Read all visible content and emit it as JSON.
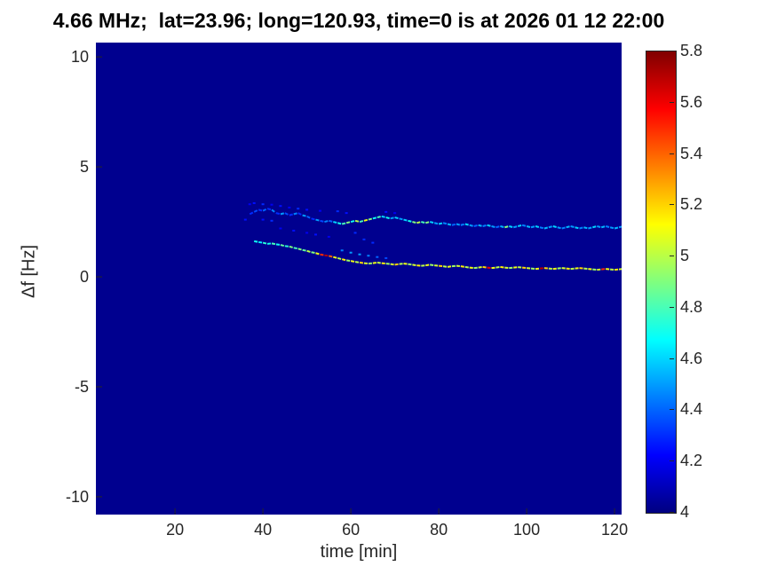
{
  "chart_data": {
    "type": "heatmap",
    "title": "4.66 MHz;  lat=23.96; long=120.93, time=0 is at 2026 01 12 22:00",
    "xlabel": "time [min]",
    "ylabel": "Δf [Hz]",
    "xlim": [
      2,
      121.6
    ],
    "ylim": [
      -10.81,
      10.65
    ],
    "x_ticks": {
      "values": [
        20,
        40,
        60,
        80,
        100,
        120
      ],
      "labels": [
        "20",
        "40",
        "60",
        "80",
        "100",
        "120"
      ]
    },
    "y_ticks": {
      "values": [
        10,
        5,
        0,
        -5,
        -10
      ],
      "labels": [
        "10",
        "5",
        "0",
        "-5",
        "-10"
      ]
    },
    "grid": false,
    "colormap": "jet",
    "background_value": 4,
    "background_color": "#00008f",
    "colorbar": {
      "position": "right",
      "min": 4,
      "max": 5.8,
      "tick_values": [
        4,
        4.2,
        4.4,
        4.6,
        4.8,
        5,
        5.2,
        5.4,
        5.6,
        5.8
      ],
      "tick_labels": [
        "4",
        "4.2",
        "4.4",
        "4.6",
        "4.8",
        "5",
        "5.2",
        "5.4",
        "5.6",
        "5.8"
      ]
    },
    "traces": [
      {
        "name": "upper-doppler-trace",
        "style": "segments",
        "description": "Upper Doppler shift trace, appears ~t=37 min near 3 Hz, settles to ~2.2-2.3 Hz",
        "points": [
          [
            37,
            2.85,
            4.25
          ],
          [
            38,
            2.95,
            4.3
          ],
          [
            39,
            3.05,
            4.35
          ],
          [
            40,
            3.0,
            4.3
          ],
          [
            41,
            3.1,
            4.4
          ],
          [
            42,
            3.05,
            4.3
          ],
          [
            43,
            2.9,
            4.45
          ],
          [
            44,
            2.85,
            4.3
          ],
          [
            45,
            2.9,
            4.5
          ],
          [
            46,
            2.8,
            4.35
          ],
          [
            47,
            2.85,
            4.3
          ],
          [
            48,
            2.9,
            4.45
          ],
          [
            49,
            2.8,
            4.3
          ],
          [
            50,
            2.75,
            4.5
          ],
          [
            51,
            2.65,
            4.4
          ],
          [
            52,
            2.6,
            4.3
          ],
          [
            53,
            2.55,
            4.5
          ],
          [
            54,
            2.5,
            4.35
          ],
          [
            55,
            2.55,
            4.45
          ],
          [
            56,
            2.5,
            4.4
          ],
          [
            57,
            2.45,
            4.6
          ],
          [
            58,
            2.4,
            4.7
          ],
          [
            59,
            2.45,
            4.8
          ],
          [
            60,
            2.5,
            4.9
          ],
          [
            61,
            2.55,
            4.7
          ],
          [
            62,
            2.5,
            5.0
          ],
          [
            63,
            2.55,
            4.8
          ],
          [
            64,
            2.6,
            5.1
          ],
          [
            65,
            2.65,
            4.9
          ],
          [
            66,
            2.7,
            4.7
          ],
          [
            67,
            2.75,
            4.8
          ],
          [
            68,
            2.7,
            4.6
          ],
          [
            69,
            2.65,
            4.7
          ],
          [
            70,
            2.7,
            4.5
          ],
          [
            71,
            2.65,
            4.6
          ],
          [
            72,
            2.6,
            4.5
          ],
          [
            73,
            2.55,
            4.6
          ],
          [
            74,
            2.5,
            4.7
          ],
          [
            75,
            2.45,
            4.9
          ],
          [
            76,
            2.5,
            5.0
          ],
          [
            77,
            2.45,
            4.8
          ],
          [
            78,
            2.5,
            4.9
          ],
          [
            79,
            2.45,
            4.6
          ],
          [
            80,
            2.4,
            4.5
          ],
          [
            81,
            2.45,
            4.6
          ],
          [
            82,
            2.4,
            4.45
          ],
          [
            83,
            2.35,
            4.55
          ],
          [
            84,
            2.4,
            4.4
          ],
          [
            85,
            2.35,
            4.5
          ],
          [
            86,
            2.4,
            4.45
          ],
          [
            87,
            2.35,
            4.6
          ],
          [
            88,
            2.3,
            4.5
          ],
          [
            89,
            2.35,
            4.4
          ],
          [
            90,
            2.3,
            4.55
          ],
          [
            91,
            2.35,
            4.45
          ],
          [
            92,
            2.3,
            4.6
          ],
          [
            93,
            2.25,
            4.5
          ],
          [
            94,
            2.3,
            4.4
          ],
          [
            95,
            2.25,
            4.55
          ],
          [
            96,
            2.3,
            4.9
          ],
          [
            97,
            2.25,
            4.6
          ],
          [
            98,
            2.3,
            4.5
          ],
          [
            99,
            2.35,
            4.6
          ],
          [
            100,
            2.3,
            4.45
          ],
          [
            101,
            2.25,
            4.55
          ],
          [
            102,
            2.3,
            4.5
          ],
          [
            103,
            2.25,
            4.6
          ],
          [
            104,
            2.2,
            4.45
          ],
          [
            105,
            2.25,
            4.55
          ],
          [
            106,
            2.3,
            4.5
          ],
          [
            107,
            2.25,
            4.6
          ],
          [
            108,
            2.2,
            4.5
          ],
          [
            109,
            2.25,
            4.45
          ],
          [
            110,
            2.3,
            4.55
          ],
          [
            111,
            2.25,
            4.5
          ],
          [
            112,
            2.2,
            4.6
          ],
          [
            113,
            2.25,
            4.45
          ],
          [
            114,
            2.2,
            4.55
          ],
          [
            115,
            2.25,
            4.5
          ],
          [
            116,
            2.3,
            4.6
          ],
          [
            117,
            2.25,
            4.5
          ],
          [
            118,
            2.3,
            4.55
          ],
          [
            119,
            2.25,
            4.45
          ],
          [
            120,
            2.2,
            4.5
          ],
          [
            121,
            2.25,
            4.55
          ],
          [
            122,
            2.3,
            4.5
          ]
        ]
      },
      {
        "name": "lower-doppler-trace",
        "style": "segments",
        "description": "Lower Doppler shift trace, appears ~t=38 min near 1.6 Hz, descends to ~0.3-0.4 Hz, with red/orange specks",
        "points": [
          [
            38,
            1.62,
            4.6
          ],
          [
            39,
            1.58,
            4.7
          ],
          [
            40,
            1.55,
            4.65
          ],
          [
            41,
            1.5,
            4.75
          ],
          [
            42,
            1.52,
            4.7
          ],
          [
            43,
            1.48,
            4.8
          ],
          [
            44,
            1.45,
            4.7
          ],
          [
            45,
            1.4,
            4.85
          ],
          [
            46,
            1.38,
            4.75
          ],
          [
            47,
            1.32,
            4.9
          ],
          [
            48,
            1.28,
            4.8
          ],
          [
            49,
            1.22,
            4.9
          ],
          [
            50,
            1.18,
            4.85
          ],
          [
            51,
            1.12,
            5.0
          ],
          [
            52,
            1.08,
            4.9
          ],
          [
            53,
            1.02,
            5.1
          ],
          [
            54,
            0.98,
            5.5
          ],
          [
            55,
            0.95,
            5.7
          ],
          [
            56,
            0.9,
            5.4
          ],
          [
            57,
            0.85,
            5.1
          ],
          [
            58,
            0.8,
            5.0
          ],
          [
            59,
            0.75,
            5.15
          ],
          [
            60,
            0.72,
            4.95
          ],
          [
            61,
            0.68,
            5.1
          ],
          [
            62,
            0.65,
            5.0
          ],
          [
            63,
            0.62,
            5.2
          ],
          [
            64,
            0.6,
            5.05
          ],
          [
            65,
            0.62,
            4.95
          ],
          [
            66,
            0.65,
            5.1
          ],
          [
            67,
            0.62,
            5.0
          ],
          [
            68,
            0.6,
            5.15
          ],
          [
            69,
            0.58,
            4.95
          ],
          [
            70,
            0.55,
            5.05
          ],
          [
            71,
            0.58,
            5.2
          ],
          [
            72,
            0.6,
            5.0
          ],
          [
            73,
            0.58,
            5.1
          ],
          [
            74,
            0.55,
            4.95
          ],
          [
            75,
            0.52,
            5.05
          ],
          [
            76,
            0.5,
            5.15
          ],
          [
            77,
            0.52,
            5.0
          ],
          [
            78,
            0.55,
            5.1
          ],
          [
            79,
            0.52,
            4.95
          ],
          [
            80,
            0.5,
            5.05
          ],
          [
            81,
            0.48,
            5.2
          ],
          [
            82,
            0.45,
            5.0
          ],
          [
            83,
            0.48,
            5.1
          ],
          [
            84,
            0.5,
            4.95
          ],
          [
            85,
            0.48,
            5.05
          ],
          [
            86,
            0.45,
            5.15
          ],
          [
            87,
            0.42,
            5.0
          ],
          [
            88,
            0.4,
            5.1
          ],
          [
            89,
            0.42,
            4.95
          ],
          [
            90,
            0.45,
            5.05
          ],
          [
            91,
            0.42,
            5.2
          ],
          [
            92,
            0.4,
            5.6
          ],
          [
            93,
            0.42,
            5.1
          ],
          [
            94,
            0.45,
            5.0
          ],
          [
            95,
            0.42,
            5.15
          ],
          [
            96,
            0.4,
            5.05
          ],
          [
            97,
            0.42,
            4.95
          ],
          [
            98,
            0.44,
            5.1
          ],
          [
            99,
            0.42,
            5.0
          ],
          [
            100,
            0.4,
            5.2
          ],
          [
            101,
            0.38,
            5.05
          ],
          [
            102,
            0.36,
            4.95
          ],
          [
            103,
            0.38,
            5.1
          ],
          [
            104,
            0.4,
            5.7
          ],
          [
            105,
            0.38,
            5.2
          ],
          [
            106,
            0.36,
            5.0
          ],
          [
            107,
            0.38,
            5.1
          ],
          [
            108,
            0.4,
            4.95
          ],
          [
            109,
            0.38,
            5.05
          ],
          [
            110,
            0.36,
            5.15
          ],
          [
            111,
            0.38,
            5.0
          ],
          [
            112,
            0.4,
            5.1
          ],
          [
            113,
            0.38,
            5.2
          ],
          [
            114,
            0.36,
            5.0
          ],
          [
            115,
            0.34,
            5.1
          ],
          [
            116,
            0.32,
            4.95
          ],
          [
            117,
            0.34,
            5.05
          ],
          [
            118,
            0.36,
            5.5
          ],
          [
            119,
            0.34,
            5.1
          ],
          [
            120,
            0.32,
            5.0
          ],
          [
            121,
            0.34,
            5.15
          ],
          [
            122,
            0.36,
            5.05
          ]
        ]
      },
      {
        "name": "faint-scatter-specks",
        "style": "dots",
        "description": "Faint scattered blue specks between/above the two traces, mostly t=36-70 min",
        "points": [
          [
            36,
            2.6,
            4.25
          ],
          [
            37,
            3.3,
            4.2
          ],
          [
            38,
            3.35,
            4.25
          ],
          [
            40,
            3.3,
            4.3
          ],
          [
            42,
            3.28,
            4.2
          ],
          [
            44,
            3.22,
            4.25
          ],
          [
            46,
            3.15,
            4.2
          ],
          [
            48,
            3.1,
            4.3
          ],
          [
            50,
            3.05,
            4.25
          ],
          [
            53,
            3.0,
            4.2
          ],
          [
            57,
            2.98,
            4.3
          ],
          [
            59,
            2.9,
            4.25
          ],
          [
            44,
            2.2,
            4.2
          ],
          [
            47,
            2.1,
            4.25
          ],
          [
            50,
            2.0,
            4.2
          ],
          [
            52,
            1.92,
            4.25
          ],
          [
            55,
            1.82,
            4.2
          ],
          [
            58,
            1.2,
            4.45
          ],
          [
            60,
            1.1,
            4.5
          ],
          [
            62,
            1.02,
            4.5
          ],
          [
            64,
            0.96,
            4.45
          ],
          [
            66,
            0.9,
            4.4
          ],
          [
            68,
            0.85,
            4.35
          ],
          [
            61,
            2.0,
            4.3
          ],
          [
            63,
            1.7,
            4.3
          ],
          [
            65,
            1.55,
            4.3
          ],
          [
            68,
            2.95,
            4.25
          ],
          [
            70,
            2.9,
            4.2
          ],
          [
            42,
            2.55,
            4.3
          ],
          [
            40,
            2.6,
            4.25
          ]
        ]
      }
    ]
  }
}
